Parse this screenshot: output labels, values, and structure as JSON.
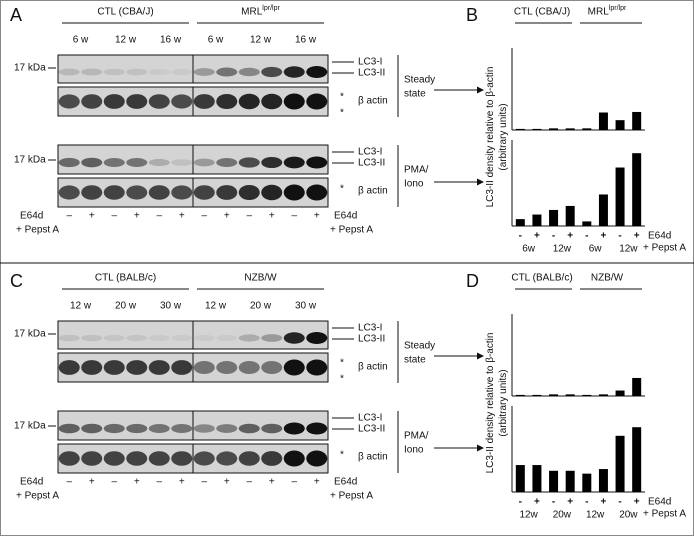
{
  "top": {
    "blot": {
      "letter": "A",
      "strains": [
        {
          "name": "CTL (CBA/J)"
        },
        {
          "name": "MRL",
          "sup": "lpr/lpr"
        }
      ],
      "ages": [
        "6 w",
        "12 w",
        "16 w",
        "6 w",
        "12 w",
        "16 w"
      ],
      "marker": "17 kDa",
      "bands": [
        "LC3-I",
        "LC3-II",
        "β actin"
      ],
      "asterisk": "*",
      "conditions": [
        [
          "Steady",
          "state"
        ],
        [
          "PMA/",
          "Iono"
        ]
      ],
      "treatment": [
        "E64d",
        "+ Pepst A"
      ],
      "signs": [
        "–",
        "+",
        "–",
        "+",
        "–",
        "+",
        "–",
        "+",
        "–",
        "+",
        "–",
        "+"
      ]
    },
    "chart": {
      "letter": "B",
      "y_label": [
        "LC3-II density relative to β-actin",
        "(arbitrary units)"
      ],
      "strains": [
        {
          "name": "CTL (CBA/J)"
        },
        {
          "name": "MRL",
          "sup": "lpr/lpr"
        }
      ],
      "signs": [
        "-",
        "+",
        "-",
        "+",
        "-",
        "+",
        "-",
        "+"
      ],
      "ages": [
        "6w",
        "12w",
        "6w",
        "12w"
      ],
      "treatment": [
        "E64d",
        "+ Pepst A"
      ],
      "color": "#000000",
      "panels": [
        {
          "ylim": [
            0,
            1.5
          ],
          "values": [
            0.02,
            0.02,
            0.03,
            0.03,
            0.03,
            0.32,
            0.18,
            0.33
          ]
        },
        {
          "ylim": [
            0,
            1.5
          ],
          "values": [
            0.12,
            0.2,
            0.28,
            0.35,
            0.08,
            0.55,
            1.02,
            1.27
          ]
        }
      ]
    }
  },
  "bottom": {
    "blot": {
      "letter": "C",
      "strains": [
        {
          "name": "CTL (BALB/c)"
        },
        {
          "name": "NZB/W"
        }
      ],
      "ages": [
        "12 w",
        "20 w",
        "30 w",
        "12 w",
        "20 w",
        "30 w"
      ],
      "marker": "17 kDa",
      "bands": [
        "LC3-I",
        "LC3-II",
        "β actin"
      ],
      "asterisk": "*",
      "conditions": [
        [
          "Steady",
          "state"
        ],
        [
          "PMA/",
          "Iono"
        ]
      ],
      "treatment": [
        "E64d",
        "+ Pepst A"
      ],
      "signs": [
        "–",
        "+",
        "–",
        "+",
        "–",
        "+",
        "–",
        "+",
        "–",
        "+",
        "–",
        "+"
      ]
    },
    "chart": {
      "letter": "D",
      "y_label": [
        "LC3-II density relative to β-actin",
        "(arbitrary units)"
      ],
      "strains": [
        {
          "name": "CTL (BALB/c)"
        },
        {
          "name": "NZB/W"
        }
      ],
      "signs": [
        "-",
        "+",
        "-",
        "+",
        "-",
        "+",
        "-",
        "+"
      ],
      "ages": [
        "12w",
        "20w",
        "12w",
        "20w"
      ],
      "treatment": [
        "E64d",
        "+ Pepst A"
      ],
      "color": "#000000",
      "panels": [
        {
          "ylim": [
            0,
            1.5
          ],
          "values": [
            0.02,
            0.02,
            0.03,
            0.03,
            0.02,
            0.03,
            0.1,
            0.33
          ]
        },
        {
          "ylim": [
            0,
            1.5
          ],
          "values": [
            0.47,
            0.47,
            0.37,
            0.37,
            0.32,
            0.4,
            0.98,
            1.13
          ]
        }
      ]
    }
  }
}
